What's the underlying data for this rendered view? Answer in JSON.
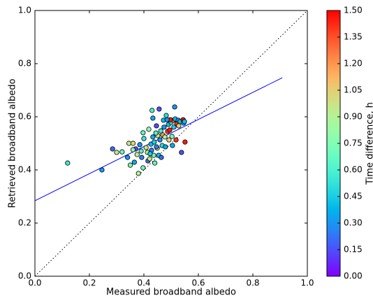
{
  "chart_data": {
    "type": "scatter",
    "xlabel": "Measured broadband albedo",
    "ylabel": "Retrieved broadband albedo",
    "xlim": [
      0,
      1
    ],
    "ylim": [
      0,
      1
    ],
    "xticks": [
      {
        "value": 0,
        "label": "0.0"
      },
      0.2,
      0.4,
      0.6,
      0.8,
      {
        "value": 1,
        "label": "1.0"
      }
    ],
    "yticks": [
      {
        "value": 0,
        "label": "0.0"
      },
      0.2,
      0.4,
      0.6,
      0.8,
      {
        "value": 1,
        "label": "1.0"
      }
    ],
    "x": [
      0.12,
      0.246,
      0.285,
      0.3,
      0.32,
      0.34,
      0.345,
      0.35,
      0.36,
      0.365,
      0.37,
      0.375,
      0.38,
      0.385,
      0.39,
      0.397,
      0.397,
      0.4,
      0.408,
      0.415,
      0.418,
      0.426,
      0.428,
      0.43,
      0.433,
      0.433,
      0.436,
      0.438,
      0.44,
      0.446,
      0.449,
      0.451,
      0.454,
      0.456,
      0.459,
      0.462,
      0.464,
      0.467,
      0.469,
      0.472,
      0.474,
      0.477,
      0.479,
      0.482,
      0.487,
      0.49,
      0.492,
      0.495,
      0.5,
      0.503,
      0.505,
      0.508,
      0.51,
      0.513,
      0.515,
      0.518,
      0.521,
      0.526,
      0.528,
      0.533,
      0.538,
      0.544,
      0.546,
      0.549,
      0.551,
      0.497,
      0.485,
      0.36,
      0.392,
      0.413,
      0.421,
      0.444,
      0.446,
      0.423
    ],
    "values": [
      0.426,
      0.4,
      0.479,
      0.466,
      0.468,
      0.447,
      0.5,
      0.418,
      0.5,
      0.429,
      0.479,
      0.458,
      0.387,
      0.495,
      0.471,
      0.408,
      0.54,
      0.518,
      0.484,
      0.434,
      0.553,
      0.497,
      0.474,
      0.624,
      0.595,
      0.524,
      0.455,
      0.505,
      0.426,
      0.566,
      0.482,
      0.529,
      0.455,
      0.629,
      0.513,
      0.547,
      0.447,
      0.492,
      0.532,
      0.587,
      0.561,
      0.524,
      0.487,
      0.605,
      0.545,
      0.571,
      0.513,
      0.55,
      0.579,
      0.526,
      0.492,
      0.587,
      0.561,
      0.637,
      0.592,
      0.513,
      0.574,
      0.587,
      0.566,
      0.582,
      0.466,
      0.589,
      0.576,
      0.582,
      0.505,
      0.589,
      0.589,
      0.476,
      0.447,
      0.466,
      0.442,
      0.539,
      0.487,
      0.461
    ],
    "c": [
      0.55,
      0.3,
      0.2,
      0.95,
      0.7,
      0.3,
      0.95,
      0.75,
      1.0,
      0.35,
      0.15,
      0.9,
      0.9,
      0.3,
      0.6,
      0.7,
      0.65,
      0.55,
      0.95,
      0.2,
      0.8,
      0.4,
      0.25,
      0.6,
      0.35,
      0.35,
      0.7,
      0.45,
      0.65,
      0.15,
      0.9,
      1.0,
      0.4,
      0.15,
      0.3,
      0.55,
      0.2,
      0.5,
      1.2,
      0.4,
      0.3,
      0.85,
      0.35,
      0.5,
      1.4,
      0.4,
      1.05,
      1.45,
      0.5,
      0.7,
      0.35,
      1.3,
      0.45,
      0.3,
      0.4,
      1.4,
      1.4,
      0.3,
      1.05,
      0.4,
      0.15,
      1.5,
      0.35,
      0.4,
      1.45,
      1.45,
      0.3,
      0.8,
      0.25,
      0.85,
      0.95,
      0.6,
      0.25,
      0.45
    ],
    "colormap": "rainbow",
    "clim": [
      0,
      1.5
    ],
    "colorbar_label": "Time difference, h",
    "cticks": [
      {
        "value": 0,
        "label": "0.00"
      },
      0.15,
      {
        "value": 0.3,
        "label": "0.30"
      },
      0.45,
      {
        "value": 0.6,
        "label": "0.60"
      },
      0.75,
      {
        "value": 0.9,
        "label": "0.90"
      },
      1.05,
      {
        "value": 1.2,
        "label": "1.20"
      },
      1.35,
      {
        "value": 1.5,
        "label": "1.50"
      }
    ],
    "fit_line": {
      "x": [
        0,
        0.908
      ],
      "values": [
        0.284,
        0.747
      ],
      "color": "#0000ff"
    },
    "identity_line": {
      "x": [
        0,
        1
      ],
      "values": [
        0,
        1
      ],
      "color": "#000000"
    }
  }
}
